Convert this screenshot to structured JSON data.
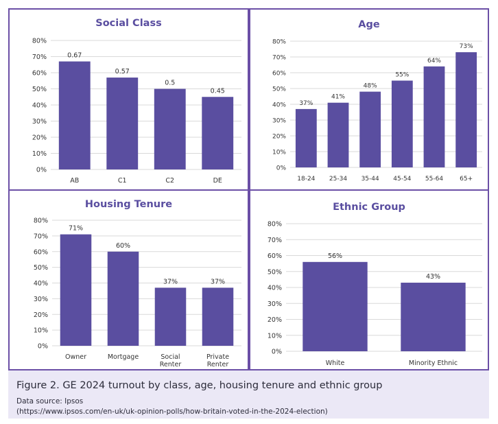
{
  "colors": {
    "bar": "#5a4ea0",
    "title": "#5a4ea0",
    "border": "#6b4fa6",
    "grid": "#d9d9d9",
    "text": "#333333"
  },
  "chart_data": [
    {
      "type": "bar",
      "title": "Social Class",
      "categories": [
        "AB",
        "C1",
        "C2",
        "DE"
      ],
      "values": [
        0.67,
        0.57,
        0.5,
        0.45
      ],
      "value_labels": [
        "0.67",
        "0.57",
        "0.5",
        "0.45"
      ],
      "yticks": [
        "0%",
        "10%",
        "20%",
        "30%",
        "40%",
        "50%",
        "60%",
        "70%",
        "80%"
      ],
      "ylim": [
        0,
        0.8
      ],
      "xlabel": "",
      "ylabel": ""
    },
    {
      "type": "bar",
      "title": "Age",
      "categories": [
        "18-24",
        "25-34",
        "35-44",
        "45-54",
        "55-64",
        "65+"
      ],
      "values": [
        0.37,
        0.41,
        0.48,
        0.55,
        0.64,
        0.73
      ],
      "value_labels": [
        "37%",
        "41%",
        "48%",
        "55%",
        "64%",
        "73%"
      ],
      "yticks": [
        "0%",
        "10%",
        "20%",
        "30%",
        "40%",
        "50%",
        "60%",
        "70%",
        "80%"
      ],
      "ylim": [
        0,
        0.8
      ],
      "xlabel": "",
      "ylabel": ""
    },
    {
      "type": "bar",
      "title": "Housing Tenure",
      "categories": [
        [
          "Owner"
        ],
        [
          "Mortgage"
        ],
        [
          "Social",
          "Renter"
        ],
        [
          "Private",
          "Renter"
        ]
      ],
      "values": [
        0.71,
        0.6,
        0.37,
        0.37
      ],
      "value_labels": [
        "71%",
        "60%",
        "37%",
        "37%"
      ],
      "yticks": [
        "0%",
        "10%",
        "20%",
        "30%",
        "40%",
        "50%",
        "60%",
        "70%",
        "80%"
      ],
      "ylim": [
        0,
        0.8
      ],
      "xlabel": "",
      "ylabel": ""
    },
    {
      "type": "bar",
      "title": "Ethnic Group",
      "categories": [
        "White",
        "Minority Ethnic"
      ],
      "values": [
        0.56,
        0.43
      ],
      "value_labels": [
        "56%",
        "43%"
      ],
      "yticks": [
        "0%",
        "10%",
        "20%",
        "30%",
        "40%",
        "50%",
        "60%",
        "70%",
        "80%"
      ],
      "ylim": [
        0,
        0.8
      ],
      "xlabel": "",
      "ylabel": ""
    }
  ],
  "caption": {
    "title": "Figure 2. GE 2024 turnout by class, age, housing tenure and ethnic group",
    "source_line1": "Data source: Ipsos",
    "source_line2": "(https://www.ipsos.com/en-uk/uk-opinion-polls/how-britain-voted-in-the-2024-election)"
  }
}
